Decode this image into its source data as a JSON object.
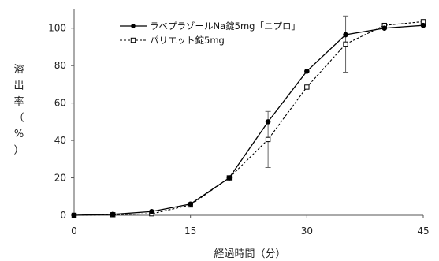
{
  "chart_data": {
    "type": "line",
    "xlabel": "経過時間（分）",
    "ylabel_chars": [
      "溶",
      "出",
      "率",
      "（",
      "%",
      "）"
    ],
    "xlim": [
      0,
      45
    ],
    "ylim": [
      0,
      110
    ],
    "xticks": [
      0,
      15,
      30,
      45
    ],
    "yticks": [
      0,
      20,
      40,
      60,
      80,
      100
    ],
    "grid": false,
    "legend_position": "top-left",
    "series": [
      {
        "name": "ラベプラゾールNa錠5mg「ニプロ」",
        "line_style": "solid",
        "marker": "filled-circle",
        "color": "#000000",
        "x": [
          0,
          5,
          10,
          15,
          20,
          25,
          30,
          35,
          40,
          45
        ],
        "y": [
          0,
          0.5,
          2,
          6,
          20,
          50,
          77,
          96.5,
          100,
          101.5
        ]
      },
      {
        "name": "パリエット錠5mg",
        "line_style": "dashed",
        "marker": "open-square",
        "color": "#000000",
        "x": [
          0,
          5,
          10,
          15,
          20,
          25,
          30,
          35,
          40,
          45
        ],
        "y": [
          0,
          0.3,
          0.8,
          5.5,
          20,
          40.5,
          68.5,
          91.5,
          101.5,
          103.5
        ],
        "error": [
          0,
          0,
          0,
          0,
          0,
          15,
          0,
          15,
          0,
          0
        ]
      }
    ]
  }
}
